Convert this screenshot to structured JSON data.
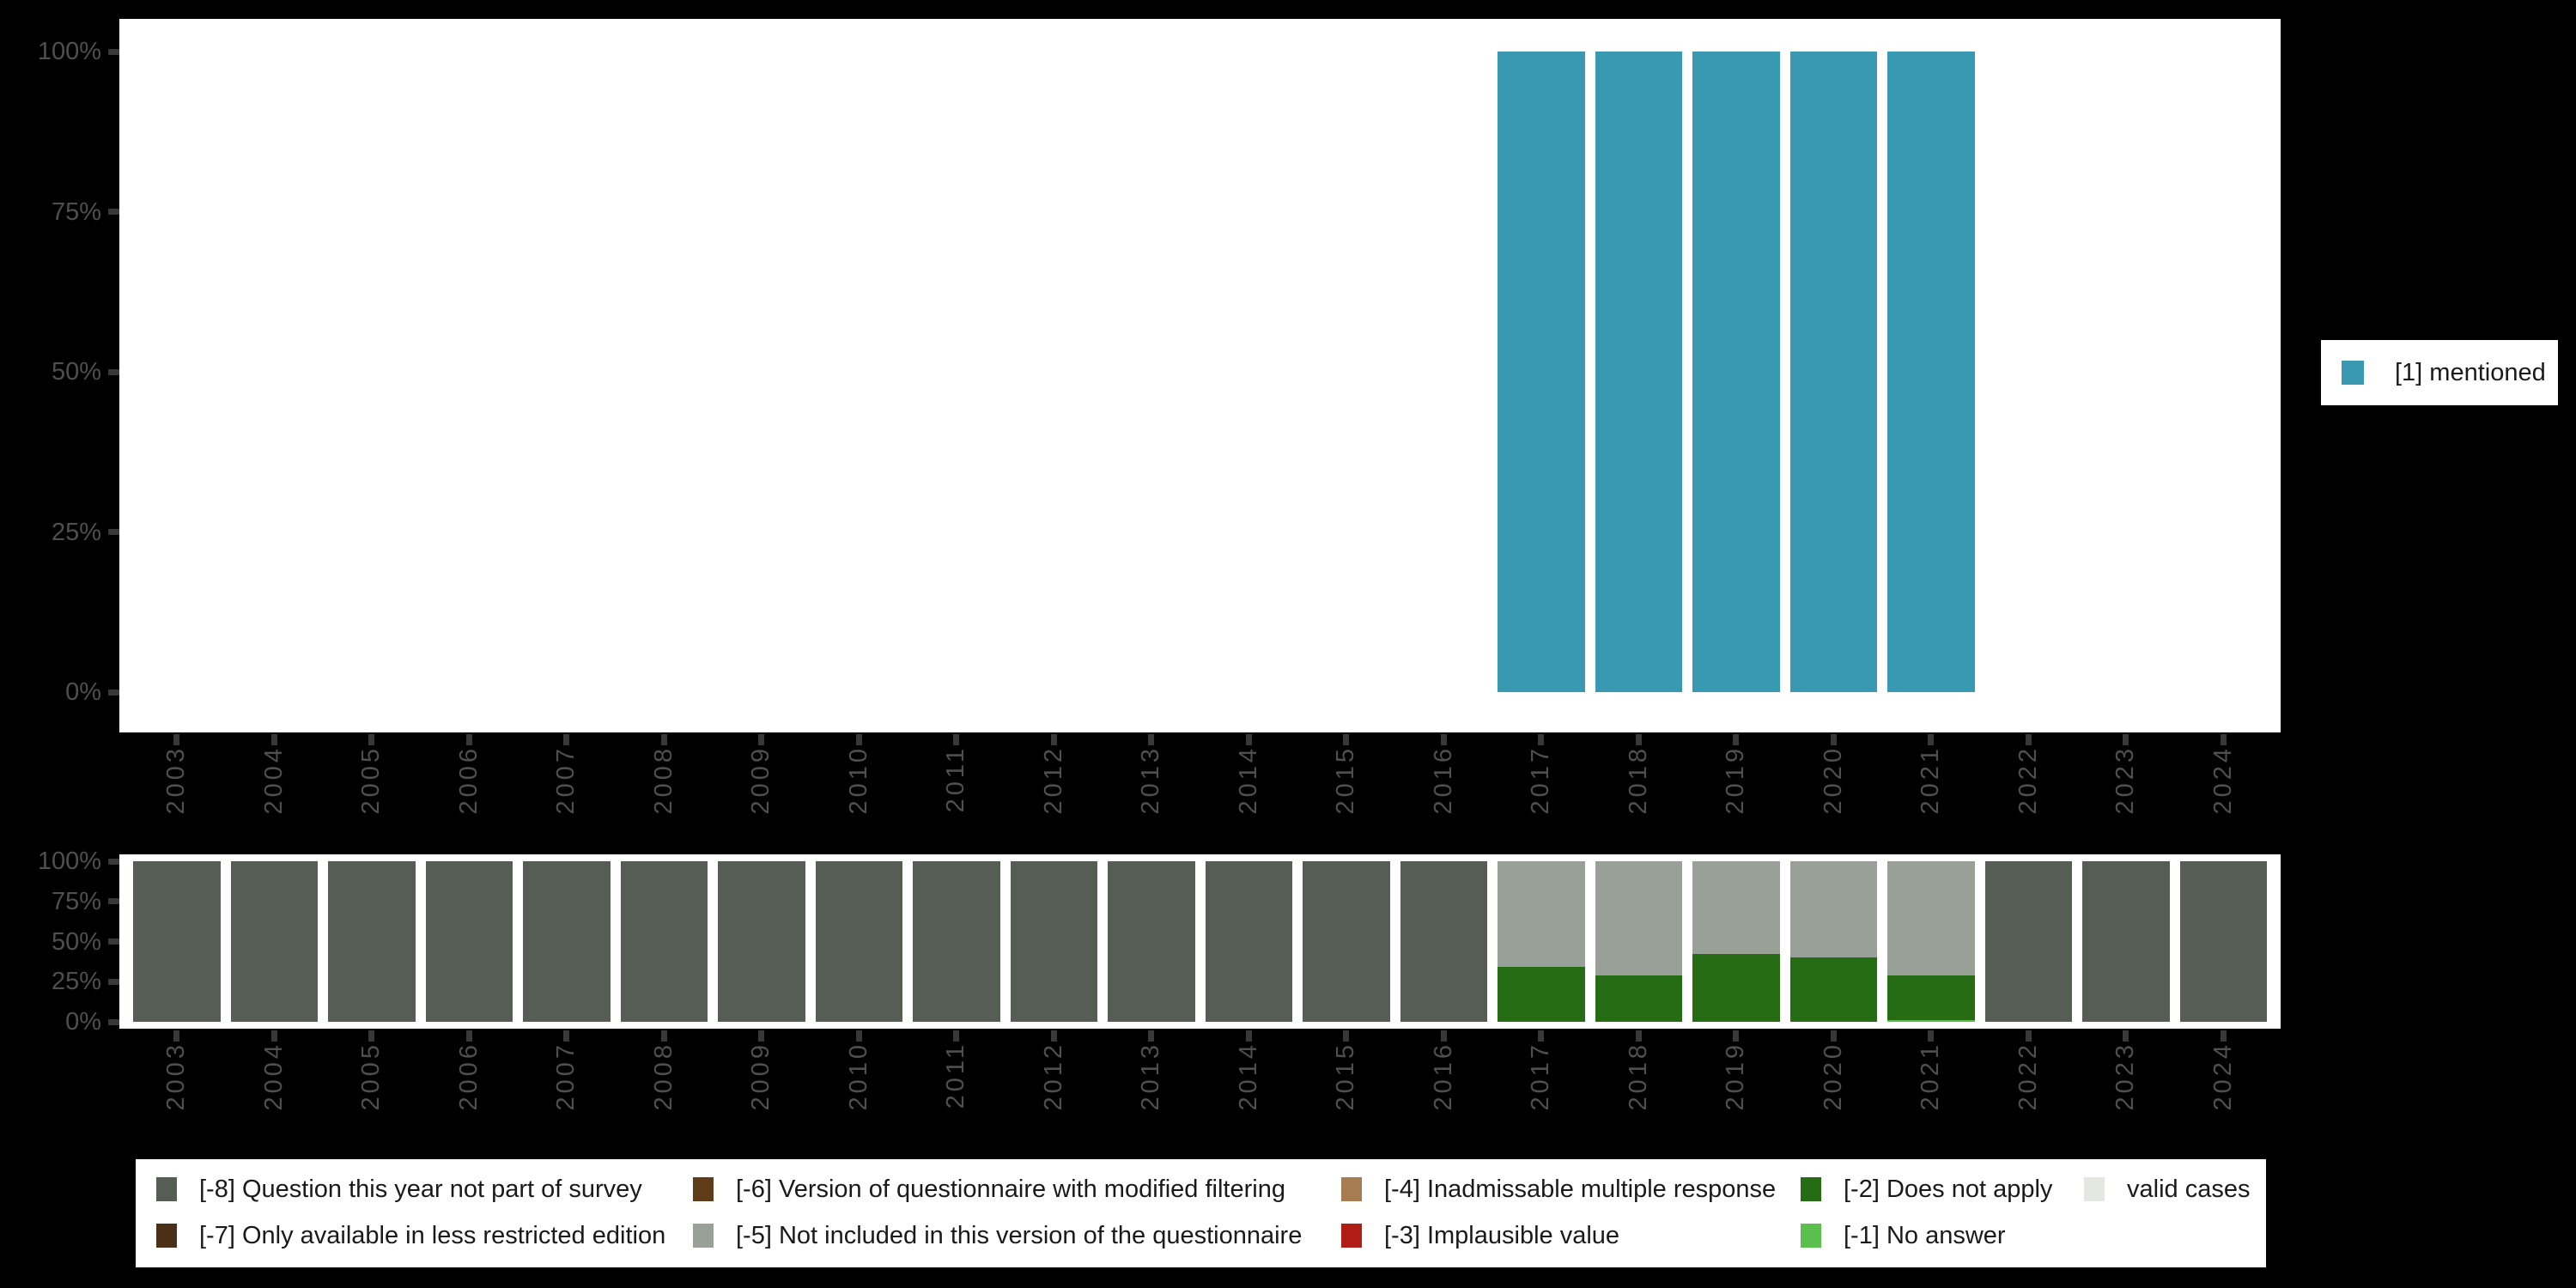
{
  "figure": {
    "background": "#000000",
    "plot_background": "#ffffff",
    "axis_text_color": "#4f4f4f",
    "tick_color": "#383838"
  },
  "legends": {
    "top": {
      "label": "[1] mentioned",
      "swatch_color": "#3a99b2"
    },
    "bottom": {
      "items": [
        {
          "label": "[-8] Question this year not part of survey",
          "color": "#555d54",
          "col": 0,
          "row": 0
        },
        {
          "label": "[-7] Only available in less restricted edition",
          "color": "#4a3017",
          "col": 0,
          "row": 1
        },
        {
          "label": "[-6] Version of questionnaire with modified filtering",
          "color": "#5e3c1a",
          "col": 1,
          "row": 0
        },
        {
          "label": "[-5] Not included in this version of the questionnaire",
          "color": "#99a097",
          "col": 1,
          "row": 1
        },
        {
          "label": "[-4] Inadmissable multiple response",
          "color": "#a87c52",
          "col": 2,
          "row": 0
        },
        {
          "label": "[-3] Implausible value",
          "color": "#b01d17",
          "col": 2,
          "row": 1
        },
        {
          "label": "[-2] Does not apply",
          "color": "#266c15",
          "col": 3,
          "row": 0
        },
        {
          "label": "[-1] No answer",
          "color": "#5abf4c",
          "col": 3,
          "row": 1
        },
        {
          "label": "valid cases",
          "color": "#e4e8e0",
          "col": 4,
          "row": 0
        }
      ]
    }
  },
  "chart_data": [
    {
      "type": "bar",
      "title": "",
      "xlabel": "",
      "ylabel": "",
      "grid": false,
      "ylim": [
        0,
        100
      ],
      "ytick_labels": [
        "100%",
        "75%",
        "50%",
        "25%",
        "0%"
      ],
      "legend_position": "right-middle",
      "categories": [
        "2003",
        "2004",
        "2005",
        "2006",
        "2007",
        "2008",
        "2009",
        "2010",
        "2011",
        "2012",
        "2013",
        "2014",
        "2015",
        "2016",
        "2017",
        "2018",
        "2019",
        "2020",
        "2021",
        "2022",
        "2023",
        "2024"
      ],
      "series": [
        {
          "name": "[1] mentioned",
          "color": "#3a99b2",
          "values": [
            0,
            0,
            0,
            0,
            0,
            0,
            0,
            0,
            0,
            0,
            0,
            0,
            0,
            0,
            100,
            100,
            100,
            100,
            100,
            0,
            0,
            0
          ]
        }
      ]
    },
    {
      "type": "stacked-bar",
      "title": "",
      "xlabel": "",
      "ylabel": "",
      "grid": false,
      "ylim": [
        0,
        100
      ],
      "ytick_labels": [
        "100%",
        "75%",
        "50%",
        "25%",
        "0%"
      ],
      "legend_position": "bottom",
      "categories": [
        "2003",
        "2004",
        "2005",
        "2006",
        "2007",
        "2008",
        "2009",
        "2010",
        "2011",
        "2012",
        "2013",
        "2014",
        "2015",
        "2016",
        "2017",
        "2018",
        "2019",
        "2020",
        "2021",
        "2022",
        "2023",
        "2024"
      ],
      "series": [
        {
          "name": "[-1] No answer",
          "color": "#5abf4c",
          "values": [
            0,
            0,
            0,
            0,
            0,
            0,
            0,
            0,
            0,
            0,
            0,
            0,
            0,
            0,
            0,
            0,
            0,
            0,
            1,
            0,
            0,
            0
          ]
        },
        {
          "name": "[-2] Does not apply",
          "color": "#266c15",
          "values": [
            0,
            0,
            0,
            0,
            0,
            0,
            0,
            0,
            0,
            0,
            0,
            0,
            0,
            0,
            34,
            29,
            42,
            40,
            28,
            0,
            0,
            0
          ]
        },
        {
          "name": "[-5] Not included in this version of the questionnaire",
          "color": "#99a097",
          "values": [
            0,
            0,
            0,
            0,
            0,
            0,
            0,
            0,
            0,
            0,
            0,
            0,
            0,
            0,
            66,
            71,
            58,
            60,
            71,
            0,
            0,
            0
          ]
        },
        {
          "name": "[-8] Question this year not part of survey",
          "color": "#555d54",
          "values": [
            100,
            100,
            100,
            100,
            100,
            100,
            100,
            100,
            100,
            100,
            100,
            100,
            100,
            100,
            0,
            0,
            0,
            0,
            0,
            100,
            100,
            100
          ]
        }
      ]
    }
  ]
}
